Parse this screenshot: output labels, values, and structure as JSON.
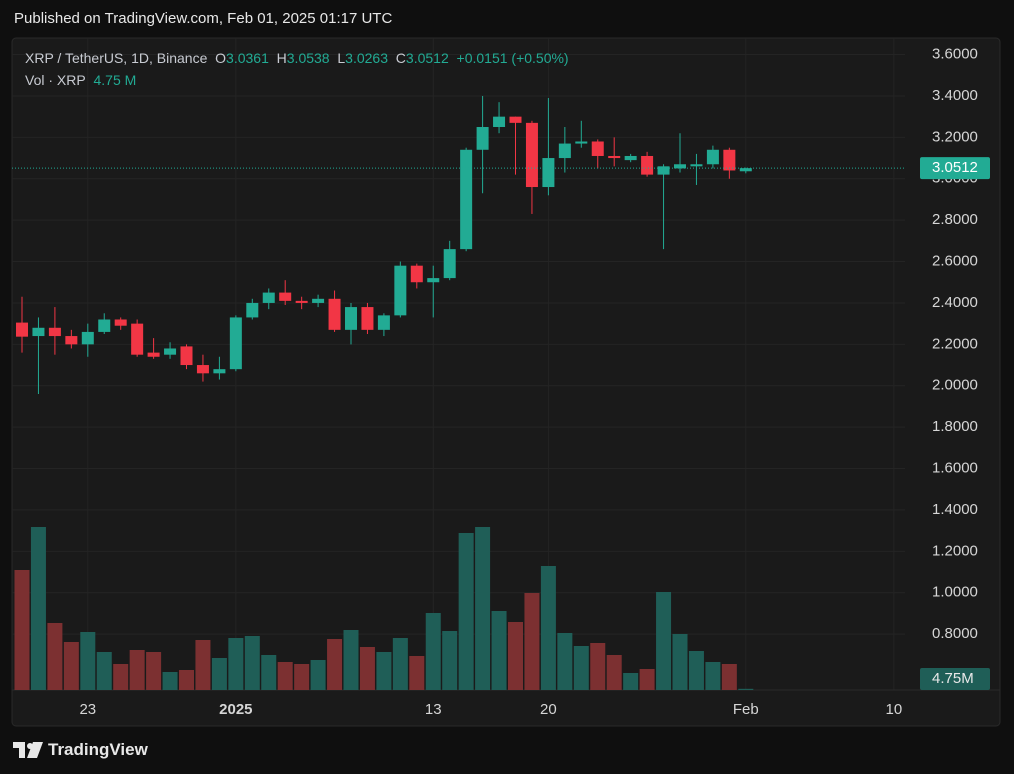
{
  "header": {
    "published": "Published on TradingView.com, Feb 01, 2025 01:17 UTC"
  },
  "footer": {
    "brand": "TradingView"
  },
  "chart_data": {
    "type": "candlestick",
    "title": "XRP / TetherUS, 1D, Binance",
    "legend": {
      "o": "O",
      "h": "H",
      "l": "L",
      "c": "C",
      "change": "+0.0151 (+0.50%)",
      "volume_name": "Vol · XRP",
      "volume_value": "4.75 M"
    },
    "up_color": "#22ab94",
    "down_color": "#f23645",
    "volume_up_color": "#1f5e57",
    "volume_down_color": "#7c3031",
    "categories": [
      null,
      null,
      null,
      null,
      "23",
      null,
      null,
      null,
      null,
      null,
      null,
      null,
      null,
      "2025",
      null,
      null,
      null,
      null,
      null,
      null,
      null,
      null,
      null,
      null,
      null,
      "13",
      null,
      null,
      null,
      null,
      null,
      null,
      "20",
      null,
      null,
      null,
      null,
      null,
      null,
      null,
      null,
      null,
      null,
      null,
      "Feb",
      null,
      null,
      null,
      null,
      null,
      null,
      null,
      null,
      "10"
    ],
    "open": [
      2.305,
      2.24,
      2.28,
      2.24,
      2.2,
      2.26,
      2.32,
      2.3,
      2.16,
      2.15,
      2.19,
      2.1,
      2.06,
      2.08,
      2.33,
      2.4,
      2.45,
      2.41,
      2.4,
      2.42,
      2.27,
      2.38,
      2.27,
      2.34,
      2.58,
      2.5,
      2.52,
      2.66,
      3.14,
      3.25,
      3.3,
      3.27,
      2.96,
      3.1,
      3.17,
      3.18,
      3.11,
      3.09,
      3.11,
      3.02,
      3.05,
      3.06,
      3.07,
      3.14,
      3.0361,
      null,
      null,
      null,
      null,
      null,
      null,
      null,
      null,
      null
    ],
    "high": [
      2.43,
      2.33,
      2.38,
      2.27,
      2.3,
      2.35,
      2.33,
      2.32,
      2.23,
      2.21,
      2.2,
      2.15,
      2.14,
      2.34,
      2.42,
      2.47,
      2.51,
      2.43,
      2.44,
      2.46,
      2.4,
      2.4,
      2.35,
      2.6,
      2.59,
      2.58,
      2.7,
      3.15,
      3.4,
      3.37,
      3.3,
      3.28,
      3.39,
      3.25,
      3.28,
      3.19,
      3.2,
      3.12,
      3.13,
      3.07,
      3.22,
      3.12,
      3.16,
      3.15,
      3.0538,
      null,
      null,
      null,
      null,
      null,
      null,
      null,
      null,
      null
    ],
    "low": [
      2.16,
      1.96,
      2.15,
      2.18,
      2.14,
      2.25,
      2.27,
      2.14,
      2.13,
      2.13,
      2.08,
      2.02,
      2.03,
      2.07,
      2.32,
      2.37,
      2.39,
      2.37,
      2.38,
      2.26,
      2.2,
      2.25,
      2.24,
      2.33,
      2.47,
      2.33,
      2.51,
      2.65,
      2.93,
      3.22,
      3.02,
      2.83,
      2.92,
      3.03,
      3.15,
      3.05,
      3.06,
      3.08,
      3.01,
      2.66,
      3.03,
      2.97,
      3.05,
      3.0,
      3.0263,
      null,
      null,
      null,
      null,
      null,
      null,
      null,
      null,
      null
    ],
    "close": [
      2.237,
      2.28,
      2.24,
      2.2,
      2.26,
      2.32,
      2.29,
      2.15,
      2.14,
      2.18,
      2.1,
      2.06,
      2.08,
      2.33,
      2.4,
      2.45,
      2.41,
      2.4,
      2.42,
      2.27,
      2.38,
      2.27,
      2.34,
      2.58,
      2.5,
      2.52,
      2.66,
      3.14,
      3.25,
      3.3,
      3.27,
      2.96,
      3.1,
      3.17,
      3.18,
      3.11,
      3.1,
      3.11,
      3.02,
      3.06,
      3.07,
      3.07,
      3.14,
      3.04,
      3.0512,
      null,
      null,
      null,
      null,
      null,
      null,
      null,
      null,
      null
    ],
    "volume": [
      480,
      652,
      268,
      192,
      232,
      152,
      104,
      160,
      152,
      72,
      80,
      200,
      128,
      208,
      216,
      140,
      112,
      104,
      120,
      204,
      240,
      172,
      152,
      208,
      136,
      308,
      236,
      628,
      652,
      316,
      272,
      388,
      496,
      228,
      176,
      188,
      140,
      68,
      84,
      392,
      224,
      156,
      112,
      104,
      4.75,
      null,
      null,
      null,
      null,
      null,
      null,
      null,
      null,
      null
    ],
    "volume_badge": "4.75M",
    "ylim": [
      0.53,
      3.68
    ],
    "volume_ylim": [
      0,
      700
    ],
    "yticks": [
      {
        "value": 0.8,
        "label": "0.8000"
      },
      {
        "value": 1.0,
        "label": "1.0000"
      },
      {
        "value": 1.2,
        "label": "1.2000"
      },
      {
        "value": 1.4,
        "label": "1.4000"
      },
      {
        "value": 1.6,
        "label": "1.6000"
      },
      {
        "value": 1.8,
        "label": "1.8000"
      },
      {
        "value": 2.0,
        "label": "2.0000"
      },
      {
        "value": 2.2,
        "label": "2.2000"
      },
      {
        "value": 2.4,
        "label": "2.4000"
      },
      {
        "value": 2.6,
        "label": "2.6000"
      },
      {
        "value": 2.8,
        "label": "2.8000"
      },
      {
        "value": 3.0,
        "label": "3.0000"
      },
      {
        "value": 3.2,
        "label": "3.2000"
      },
      {
        "value": 3.4,
        "label": "3.4000"
      },
      {
        "value": 3.6,
        "label": "3.6000"
      }
    ],
    "grid": true
  }
}
